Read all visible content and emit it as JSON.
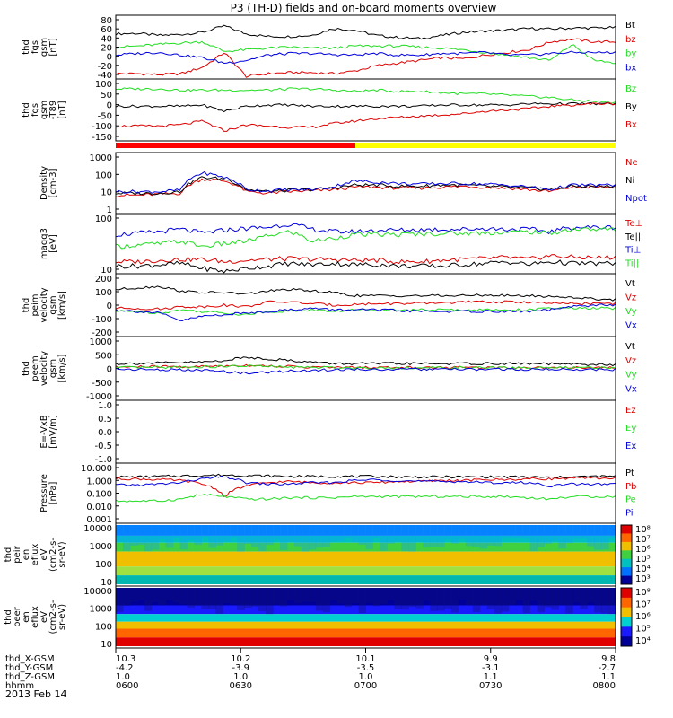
{
  "title": "P3 (TH-D) fields and on-board moments overview",
  "date": "2013 Feb 14",
  "colors": {
    "black": "#000000",
    "red": "#dd0000",
    "green": "#22dd22",
    "blue": "#0000dd",
    "yellow": "#ffff00"
  },
  "chart_data": [
    {
      "type": "line",
      "ylabel": [
        "thd",
        "fgs",
        "gsm",
        "[nT]"
      ],
      "ylim": [
        -40,
        80
      ],
      "yticks": [
        "80",
        "60",
        "40",
        "20",
        "0",
        "-20",
        "-40"
      ],
      "legend": [
        "Bt",
        "bz",
        "by",
        "bx"
      ],
      "series": [
        {
          "name": "Bt",
          "color": "black",
          "values": [
            45,
            46,
            42,
            44,
            48,
            60,
            45,
            40,
            40,
            42,
            55,
            52,
            42,
            38,
            36,
            42,
            48,
            50,
            52,
            55,
            54,
            56,
            56,
            57
          ]
        },
        {
          "name": "bz",
          "color": "red",
          "values": [
            -30,
            -30,
            -32,
            -30,
            -18,
            10,
            -35,
            -30,
            -28,
            -28,
            -30,
            -25,
            -15,
            -10,
            -5,
            0,
            -2,
            5,
            10,
            15,
            30,
            35,
            30,
            30
          ]
        },
        {
          "name": "by",
          "color": "green",
          "values": [
            20,
            22,
            25,
            28,
            30,
            12,
            15,
            18,
            20,
            18,
            18,
            22,
            22,
            22,
            20,
            18,
            15,
            10,
            5,
            0,
            -5,
            25,
            -5,
            -10
          ]
        },
        {
          "name": "bx",
          "color": "blue",
          "values": [
            5,
            8,
            10,
            5,
            0,
            -10,
            -5,
            5,
            8,
            8,
            6,
            5,
            8,
            5,
            5,
            8,
            8,
            10,
            5,
            5,
            8,
            10,
            10,
            10
          ]
        }
      ]
    },
    {
      "type": "line",
      "ylabel": [
        "thd",
        "fgs",
        "gsm",
        "-T89",
        "[nT]"
      ],
      "ylim": [
        -150,
        100
      ],
      "yticks": [
        "100",
        "50",
        "0",
        "-50",
        "-100",
        "-150"
      ],
      "legend": [
        "Bz",
        "By",
        "Bx"
      ],
      "series": [
        {
          "name": "Bz",
          "color": "green",
          "values": [
            60,
            60,
            60,
            55,
            55,
            55,
            55,
            55,
            60,
            60,
            55,
            50,
            55,
            50,
            50,
            45,
            40,
            40,
            35,
            30,
            25,
            15,
            10,
            5
          ]
        },
        {
          "name": "By",
          "color": "black",
          "values": [
            -10,
            -10,
            -10,
            -10,
            -5,
            -30,
            -10,
            -5,
            -5,
            -10,
            -10,
            -10,
            -10,
            -10,
            -10,
            -5,
            -5,
            -5,
            -5,
            0,
            0,
            0,
            0,
            0
          ]
        },
        {
          "name": "Bx",
          "color": "red",
          "values": [
            -90,
            -90,
            -90,
            -85,
            -70,
            -110,
            -85,
            -90,
            -95,
            -95,
            -80,
            -70,
            -60,
            -55,
            -50,
            -45,
            -40,
            -30,
            -25,
            -20,
            -10,
            -5,
            0,
            0
          ]
        }
      ]
    },
    {
      "type": "line",
      "ylabel": [
        "Density",
        "[cm-3]"
      ],
      "ylim": [
        1,
        1000
      ],
      "scale": "log",
      "yticks": [
        "1000",
        "100",
        "10",
        "1"
      ],
      "legend": [
        "Ne",
        "Ni",
        "Npot"
      ],
      "series": [
        {
          "name": "Ne",
          "color": "red",
          "values": [
            8,
            8,
            9,
            10,
            50,
            40,
            12,
            10,
            12,
            13,
            15,
            20,
            20,
            18,
            18,
            20,
            22,
            20,
            18,
            15,
            12,
            20,
            20,
            20
          ]
        },
        {
          "name": "Ni",
          "color": "black",
          "values": [
            10,
            10,
            10,
            12,
            60,
            50,
            15,
            12,
            14,
            15,
            18,
            25,
            25,
            22,
            22,
            25,
            25,
            22,
            20,
            18,
            15,
            22,
            22,
            22
          ]
        },
        {
          "name": "Npot",
          "color": "blue",
          "values": [
            12,
            12,
            12,
            14,
            100,
            60,
            15,
            13,
            15,
            15,
            20,
            40,
            35,
            30,
            28,
            30,
            30,
            28,
            25,
            20,
            15,
            25,
            25,
            25
          ]
        }
      ]
    },
    {
      "type": "line",
      "ylabel": [
        "magq3",
        "[eV]"
      ],
      "ylim": [
        10,
        1000
      ],
      "scale": "log",
      "yticks": [
        "100",
        "10"
      ],
      "legend": [
        "Te⊥",
        "Te||",
        "Ti⊥",
        "Ti||"
      ],
      "series": [
        {
          "name": "Te⊥",
          "color": "red",
          "values": [
            25,
            25,
            28,
            30,
            30,
            25,
            28,
            30,
            32,
            30,
            30,
            28,
            28,
            25,
            25,
            28,
            30,
            32,
            35,
            30,
            40,
            35,
            35,
            35
          ]
        },
        {
          "name": "Te||",
          "color": "black",
          "values": [
            18,
            18,
            20,
            22,
            15,
            12,
            15,
            18,
            22,
            20,
            22,
            20,
            20,
            18,
            18,
            18,
            20,
            22,
            25,
            20,
            25,
            22,
            22,
            22
          ]
        },
        {
          "name": "Ti⊥",
          "color": "blue",
          "values": [
            200,
            220,
            250,
            300,
            220,
            280,
            320,
            350,
            450,
            300,
            250,
            250,
            280,
            280,
            290,
            300,
            300,
            320,
            300,
            300,
            250,
            350,
            350,
            350
          ]
        },
        {
          "name": "Ti||",
          "color": "green",
          "values": [
            80,
            90,
            100,
            120,
            80,
            100,
            120,
            180,
            250,
            120,
            150,
            200,
            200,
            200,
            210,
            220,
            220,
            230,
            240,
            250,
            220,
            300,
            300,
            300
          ]
        }
      ]
    },
    {
      "type": "line",
      "ylabel": [
        "thd",
        "peim",
        "velocity",
        "gsm",
        "[km/s]"
      ],
      "ylim": [
        -200,
        200
      ],
      "yticks": [
        "200",
        "100",
        "0",
        "-100",
        "-200"
      ],
      "legend": [
        "Vt",
        "Vz",
        "Vy",
        "Vx"
      ],
      "series": [
        {
          "name": "Vt",
          "color": "black",
          "values": [
            100,
            110,
            120,
            90,
            80,
            80,
            70,
            90,
            100,
            90,
            80,
            60,
            60,
            60,
            60,
            60,
            60,
            65,
            60,
            60,
            55,
            50,
            40,
            35
          ]
        },
        {
          "name": "Vz",
          "color": "red",
          "values": [
            -20,
            -20,
            -25,
            -10,
            -10,
            0,
            -10,
            20,
            20,
            10,
            0,
            5,
            10,
            10,
            10,
            15,
            20,
            20,
            20,
            20,
            10,
            10,
            10,
            10
          ]
        },
        {
          "name": "Vy",
          "color": "green",
          "values": [
            -40,
            -40,
            -50,
            -30,
            -40,
            -50,
            -60,
            -40,
            -40,
            -30,
            -40,
            -30,
            -30,
            -30,
            -30,
            -30,
            -30,
            -30,
            -30,
            -30,
            -20,
            -20,
            -20,
            -20
          ]
        },
        {
          "name": "Vx",
          "color": "blue",
          "values": [
            -30,
            -40,
            -50,
            -100,
            -70,
            -60,
            -50,
            -40,
            -30,
            -20,
            -30,
            -30,
            -30,
            -35,
            -40,
            -40,
            -40,
            -40,
            -40,
            -40,
            -30,
            -10,
            0,
            0
          ]
        }
      ]
    },
    {
      "type": "line",
      "ylabel": [
        "thd",
        "peem",
        "velocity",
        "gsm",
        "[km/s]"
      ],
      "ylim": [
        -1000,
        1000
      ],
      "yticks": [
        "1000",
        "500",
        "0",
        "-500",
        "-1000"
      ],
      "legend": [
        "Vt",
        "Vz",
        "Vy",
        "Vx"
      ],
      "series": [
        {
          "name": "Vt",
          "color": "black",
          "values": [
            150,
            160,
            170,
            180,
            200,
            250,
            350,
            300,
            250,
            200,
            150,
            150,
            150,
            150,
            150,
            150,
            150,
            150,
            150,
            150,
            140,
            130,
            120,
            110
          ]
        },
        {
          "name": "Vz",
          "color": "red",
          "values": [
            40,
            50,
            60,
            50,
            60,
            80,
            100,
            80,
            60,
            40,
            30,
            30,
            30,
            30,
            30,
            30,
            30,
            30,
            30,
            30,
            30,
            30,
            30,
            30
          ]
        },
        {
          "name": "Vy",
          "color": "green",
          "values": [
            20,
            30,
            30,
            40,
            50,
            60,
            80,
            60,
            40,
            30,
            20,
            20,
            20,
            20,
            20,
            20,
            20,
            20,
            20,
            20,
            20,
            20,
            20,
            20
          ]
        },
        {
          "name": "Vx",
          "color": "blue",
          "values": [
            -20,
            -30,
            -40,
            -50,
            -60,
            -100,
            -150,
            -120,
            -80,
            -60,
            -40,
            -30,
            -30,
            -30,
            -30,
            -30,
            -30,
            -30,
            -30,
            -30,
            -30,
            -30,
            -30,
            -30
          ]
        }
      ]
    },
    {
      "type": "line",
      "ylabel": [
        "E=-VxB",
        "[mV/m]"
      ],
      "ylim": [
        -1.0,
        1.0
      ],
      "yticks": [
        "1.0",
        "0.5",
        "0.0",
        "-0.5",
        "-1.0"
      ],
      "legend": [
        "Ez",
        "Ey",
        "Ex"
      ],
      "series": []
    },
    {
      "type": "line",
      "ylabel": [
        "Pressure",
        "[nPa]"
      ],
      "ylim": [
        0.001,
        10
      ],
      "scale": "log",
      "yticks": [
        "10.000",
        "1.000",
        "0.100",
        "0.010",
        "0.001"
      ],
      "legend": [
        "Pt",
        "Pb",
        "Pe",
        "Pi"
      ],
      "series": [
        {
          "name": "Pt",
          "color": "black",
          "values": [
            1.2,
            1.2,
            1.3,
            1.4,
            1.5,
            1.6,
            1.5,
            1.4,
            1.3,
            1.3,
            1.3,
            1.3,
            1.3,
            1.2,
            1.2,
            1.2,
            1.2,
            1.2,
            1.2,
            1.2,
            1.1,
            1.2,
            1.3,
            1.3
          ]
        },
        {
          "name": "Pb",
          "color": "red",
          "values": [
            0.9,
            0.9,
            0.8,
            0.7,
            0.4,
            0.05,
            0.3,
            0.5,
            0.6,
            0.5,
            0.5,
            0.5,
            0.5,
            0.6,
            0.6,
            0.7,
            0.7,
            0.8,
            0.8,
            0.9,
            0.9,
            1.0,
            1.0,
            1.0
          ]
        },
        {
          "name": "Pe",
          "color": "green",
          "values": [
            0.03,
            0.03,
            0.03,
            0.04,
            0.08,
            0.06,
            0.04,
            0.04,
            0.05,
            0.05,
            0.05,
            0.06,
            0.06,
            0.06,
            0.06,
            0.06,
            0.06,
            0.06,
            0.06,
            0.05,
            0.04,
            0.06,
            0.06,
            0.06
          ]
        },
        {
          "name": "Pi",
          "color": "blue",
          "values": [
            0.35,
            0.35,
            0.4,
            0.5,
            0.9,
            1.2,
            0.5,
            0.4,
            0.4,
            0.5,
            0.5,
            0.7,
            0.8,
            0.7,
            0.6,
            0.6,
            0.6,
            0.5,
            0.5,
            0.5,
            0.3,
            0.4,
            0.4,
            0.4
          ]
        }
      ]
    },
    {
      "type": "heatmap",
      "ylabel": [
        "thd",
        "peir",
        "en",
        "eflux",
        "eV",
        "(cm2-s-",
        "sr-eV)"
      ],
      "ylim": [
        5,
        30000
      ],
      "scale": "log",
      "yticks": [
        "10000",
        "1000",
        "100",
        "10"
      ],
      "colorbar": {
        "labels": [
          "10⁸",
          "10⁷",
          "10⁶",
          "10⁵",
          "10⁴",
          "10³"
        ]
      }
    },
    {
      "type": "heatmap",
      "ylabel": [
        "thd",
        "peer",
        "en",
        "eflux",
        "eV",
        "(cm2-s-",
        "sr-eV)"
      ],
      "ylim": [
        5,
        30000
      ],
      "scale": "log",
      "yticks": [
        "10000",
        "1000",
        "100",
        "10"
      ],
      "colorbar": {
        "labels": [
          "10⁸",
          "10⁷",
          "10⁶",
          "10⁵",
          "10⁴"
        ]
      }
    }
  ],
  "xaxis": {
    "labels": [
      "thd_X-GSM",
      "thd_Y-GSM",
      "thd_Z-GSM",
      "hhmm"
    ],
    "columns": [
      {
        "x": "10.3",
        "y": "-4.2",
        "z": "1.0",
        "t": "0600"
      },
      {
        "x": "10.2",
        "y": "-3.9",
        "z": "1.0",
        "t": "0630"
      },
      {
        "x": "10.1",
        "y": "-3.5",
        "z": "1.0",
        "t": "0700"
      },
      {
        "x": "9.9",
        "y": "-3.1",
        "z": "1.1",
        "t": "0730"
      },
      {
        "x": "9.8",
        "y": "-2.7",
        "z": "1.1",
        "t": "0800"
      }
    ]
  }
}
